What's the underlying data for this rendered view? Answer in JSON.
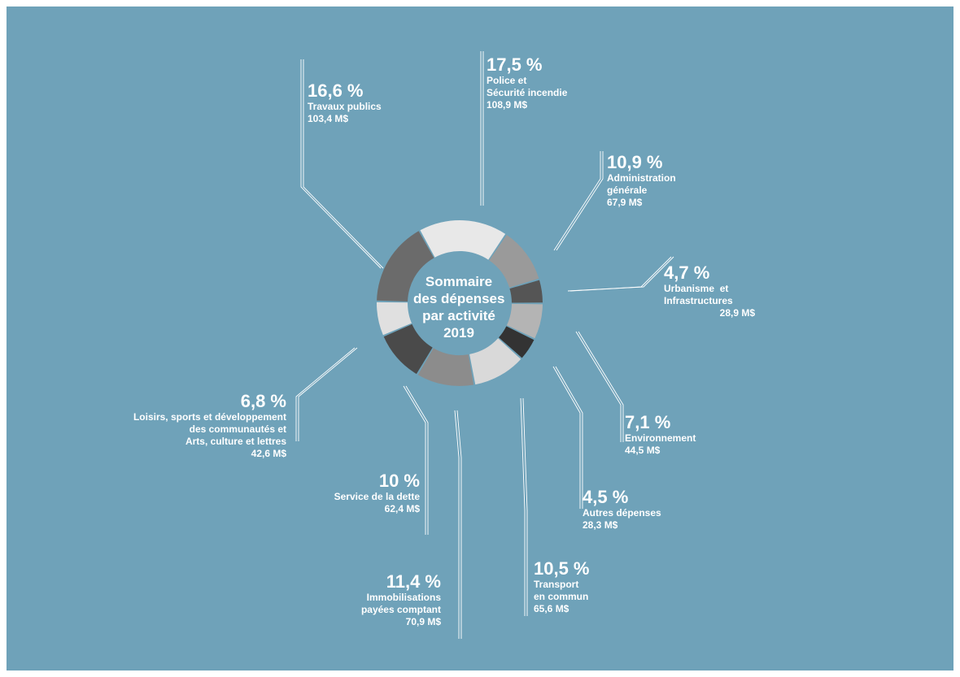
{
  "chart_data": {
    "type": "donut",
    "title": "Sommaire\ndes dépenses\npar activité\n2019",
    "unit": "M$",
    "slices": [
      {
        "key": "police",
        "percent_label": "17,5 %",
        "name": "Police et\nSécurité incendie",
        "amount_label": "108,9 M$",
        "percent": 17.5,
        "amount": 108.9,
        "color": "#e8e8e8"
      },
      {
        "key": "admin",
        "percent_label": "10,9 %",
        "name": "Administration\ngénérale",
        "amount_label": "67,9 M$",
        "percent": 10.9,
        "amount": 67.9,
        "color": "#9a9a9a"
      },
      {
        "key": "urbanisme",
        "percent_label": "4,7 %",
        "name": "Urbanisme  et\nInfrastructures",
        "amount_label": "28,9 M$",
        "percent": 4.7,
        "amount": 28.9,
        "color": "#555555"
      },
      {
        "key": "environnement",
        "percent_label": "7,1 %",
        "name": "Environnement",
        "amount_label": "44,5 M$",
        "percent": 7.1,
        "amount": 44.5,
        "color": "#b4b4b4"
      },
      {
        "key": "autres",
        "percent_label": "4,5 %",
        "name": "Autres dépenses",
        "amount_label": "28,3 M$",
        "percent": 4.5,
        "amount": 28.3,
        "color": "#333333"
      },
      {
        "key": "transport",
        "percent_label": "10,5 %",
        "name": "Transport\nen commun",
        "amount_label": "65,6 M$",
        "percent": 10.5,
        "amount": 65.6,
        "color": "#d9d9d9"
      },
      {
        "key": "immobilisations",
        "percent_label": "11,4 %",
        "name": "Immobilisations\npayées comptant",
        "amount_label": "70,9 M$",
        "percent": 11.4,
        "amount": 70.9,
        "color": "#8c8c8c"
      },
      {
        "key": "dette",
        "percent_label": "10 %",
        "name": "Service de la dette",
        "amount_label": "62,4 M$",
        "percent": 10,
        "amount": 62.4,
        "color": "#4a4a4a"
      },
      {
        "key": "loisirs",
        "percent_label": "6,8 %",
        "name": "Loisirs, sports et développement\ndes communautés et\nArts, culture et lettres",
        "amount_label": "42,6 M$",
        "percent": 6.8,
        "amount": 42.6,
        "color": "#e0e0e0"
      },
      {
        "key": "travaux",
        "percent_label": "16,6 %",
        "name": "Travaux publics",
        "amount_label": "103,4 M$",
        "percent": 16.6,
        "amount": 103.4,
        "color": "#6b6b6b"
      }
    ]
  },
  "colors": {
    "background": "#6fa2b9",
    "text": "#ffffff",
    "leader": "#ffffff"
  }
}
